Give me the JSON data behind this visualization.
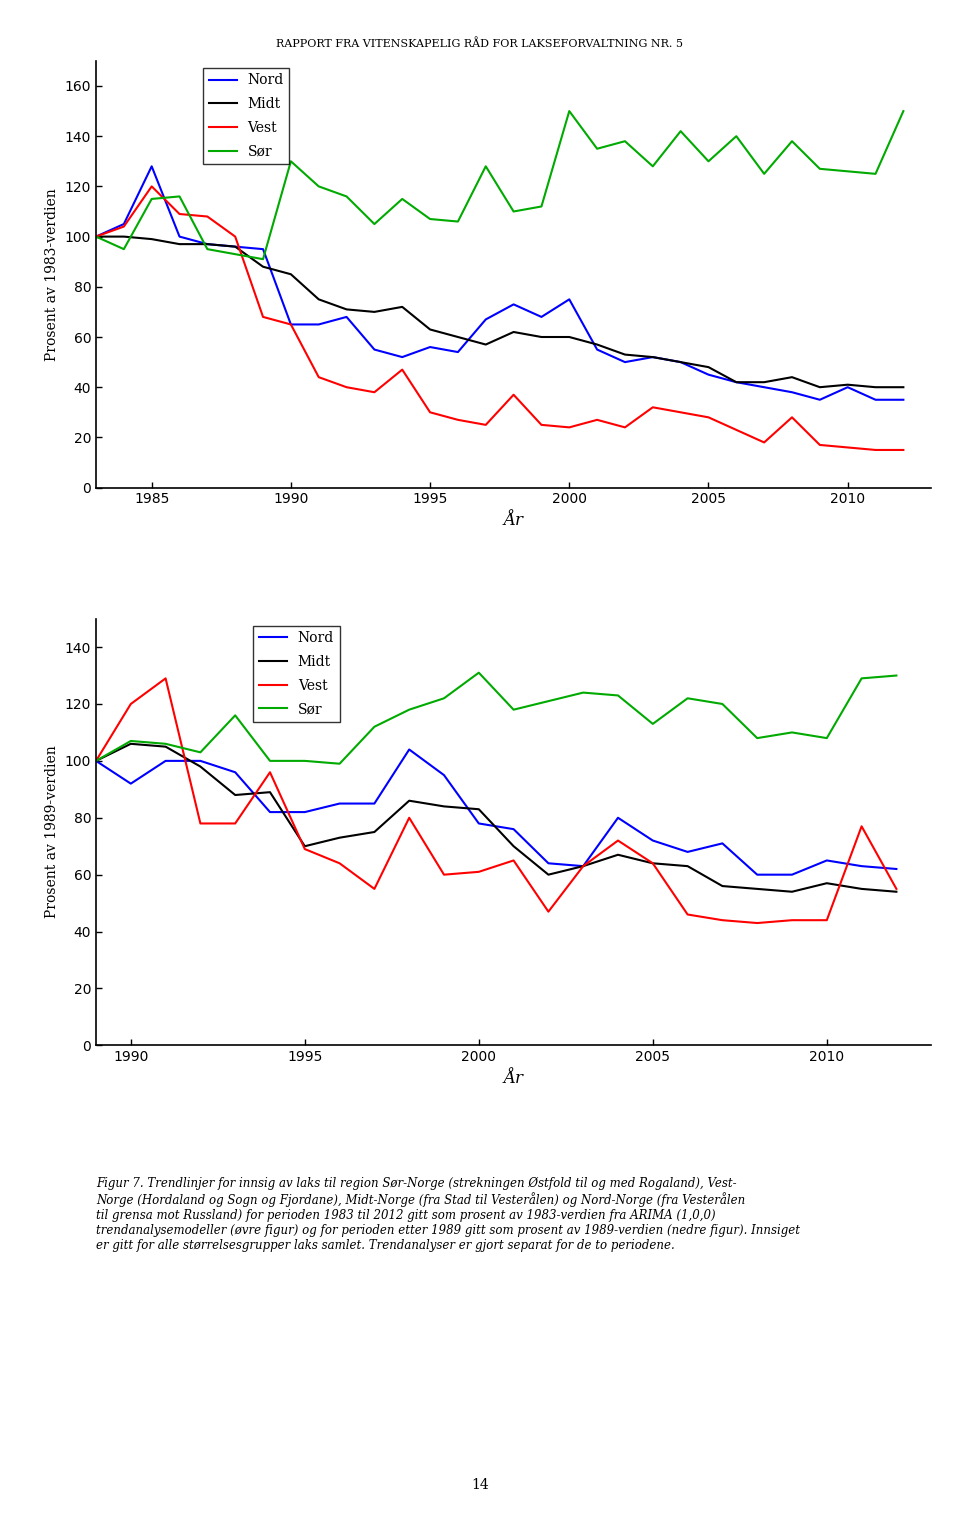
{
  "header": "RAPPORT FRA VITENSKAPELIG RÅD FOR LAKSEFORVALTNING NR. 5",
  "xlabel": "År",
  "ylabel1": "Prosent av 1983-verdien",
  "ylabel2": "Prosent av 1989-verdien",
  "legend_labels": [
    "Nord",
    "Midt",
    "Vest",
    "Sør"
  ],
  "legend_colors": [
    "#0000FF",
    "#000000",
    "#FF0000",
    "#00AA00"
  ],
  "plot1": {
    "years": [
      1983,
      1984,
      1985,
      1986,
      1987,
      1988,
      1989,
      1990,
      1991,
      1992,
      1993,
      1994,
      1995,
      1996,
      1997,
      1998,
      1999,
      2000,
      2001,
      2002,
      2003,
      2004,
      2005,
      2006,
      2007,
      2008,
      2009,
      2010,
      2011,
      2012
    ],
    "nord": [
      100,
      105,
      128,
      100,
      97,
      96,
      95,
      65,
      65,
      68,
      55,
      52,
      56,
      54,
      67,
      73,
      68,
      75,
      55,
      50,
      52,
      50,
      45,
      42,
      40,
      38,
      35,
      40,
      35,
      35
    ],
    "midt": [
      100,
      100,
      99,
      97,
      97,
      96,
      88,
      85,
      75,
      71,
      70,
      72,
      63,
      60,
      57,
      62,
      60,
      60,
      57,
      53,
      52,
      50,
      48,
      42,
      42,
      44,
      40,
      41,
      40,
      40
    ],
    "vest": [
      100,
      104,
      120,
      109,
      108,
      100,
      68,
      65,
      44,
      40,
      38,
      47,
      30,
      27,
      25,
      37,
      25,
      24,
      27,
      24,
      32,
      30,
      28,
      23,
      18,
      28,
      17,
      16,
      15,
      15
    ],
    "soer": [
      100,
      95,
      115,
      116,
      95,
      93,
      91,
      130,
      120,
      116,
      105,
      115,
      107,
      106,
      128,
      110,
      112,
      150,
      135,
      138,
      128,
      142,
      130,
      140,
      125,
      138,
      127,
      126,
      125,
      150
    ]
  },
  "plot2": {
    "years": [
      1989,
      1990,
      1991,
      1992,
      1993,
      1994,
      1995,
      1996,
      1997,
      1998,
      1999,
      2000,
      2001,
      2002,
      2003,
      2004,
      2005,
      2006,
      2007,
      2008,
      2009,
      2010,
      2011,
      2012
    ],
    "nord": [
      100,
      92,
      100,
      100,
      96,
      82,
      82,
      85,
      85,
      104,
      95,
      78,
      76,
      64,
      63,
      80,
      72,
      68,
      71,
      60,
      60,
      65,
      63,
      62
    ],
    "midt": [
      100,
      106,
      105,
      98,
      88,
      89,
      70,
      73,
      75,
      86,
      84,
      83,
      70,
      60,
      63,
      67,
      64,
      63,
      56,
      55,
      54,
      57,
      55,
      54
    ],
    "vest": [
      100,
      120,
      129,
      78,
      78,
      96,
      69,
      64,
      55,
      80,
      60,
      61,
      65,
      47,
      63,
      72,
      64,
      46,
      44,
      43,
      44,
      44,
      77,
      55
    ],
    "soer": [
      100,
      107,
      106,
      103,
      116,
      100,
      100,
      99,
      112,
      118,
      122,
      131,
      118,
      121,
      124,
      123,
      113,
      122,
      120,
      108,
      110,
      108,
      129,
      130
    ]
  },
  "plot1_xlim": [
    1983,
    2013
  ],
  "plot1_ylim": [
    0,
    170
  ],
  "plot2_xlim": [
    1989,
    2013
  ],
  "plot2_ylim": [
    0,
    150
  ],
  "plot1_yticks": [
    0,
    20,
    40,
    60,
    80,
    100,
    120,
    140,
    160
  ],
  "plot2_yticks": [
    0,
    20,
    40,
    60,
    80,
    100,
    120,
    140
  ],
  "plot1_xticks": [
    1985,
    1990,
    1995,
    2000,
    2005,
    2010
  ],
  "plot2_xticks": [
    1990,
    1995,
    2000,
    2005,
    2010
  ],
  "caption": "Figur 7. Trendlinjer for innsig av laks til region Sør-Norge (strekningen Østfold til og med Rogaland), Vest-\nNorge (Hordaland og Sogn og Fjordane), Midt-Norge (fra Stad til Vesterålen) og Nord-Norge (fra Vesterålen\ntil grensa mot Russland) for perioden 1983 til 2012 gitt som prosent av 1983-verdien fra ARIMA (1,0,0)\ntrendanalysemodeller (øvre figur) og for perioden etter 1989 gitt som prosent av 1989-verdien (nedre figur). Innsiget\ner gitt for alle størrelsesgrupper laks samlet. Trendanalyser er gjort separat for de to periodene.",
  "page_number": "14"
}
